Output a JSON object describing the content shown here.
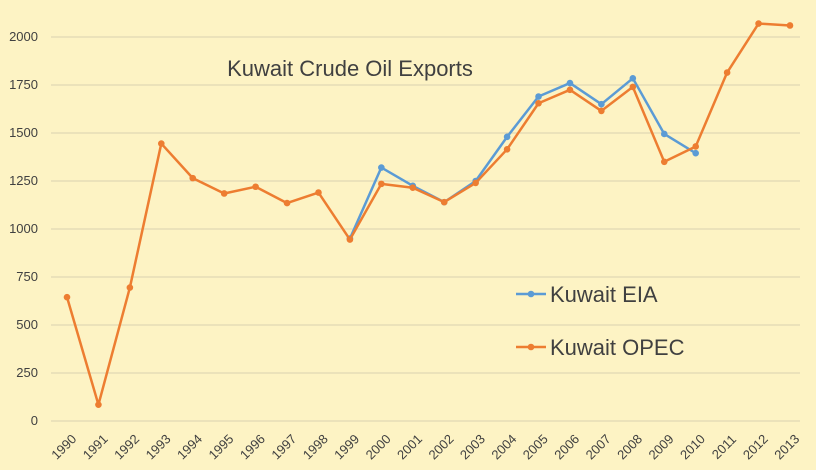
{
  "chart_data": {
    "type": "line",
    "title": "Kuwait Crude Oil Exports",
    "xlabel": "",
    "ylabel": "",
    "ylim": [
      0,
      2000
    ],
    "yticks": [
      0,
      250,
      500,
      750,
      1000,
      1250,
      1500,
      1750,
      2000
    ],
    "grid": true,
    "legend_position": "center-right",
    "categories": [
      "1990",
      "1991",
      "1992",
      "1993",
      "1994",
      "1995",
      "1996",
      "1997",
      "1998",
      "1999",
      "2000",
      "2001",
      "2002",
      "2003",
      "2004",
      "2005",
      "2006",
      "2007",
      "2008",
      "2009",
      "2010",
      "2011",
      "2012",
      "2013"
    ],
    "series": [
      {
        "name": "Kuwait EIA",
        "color": "#5b9bd5",
        "values": [
          null,
          null,
          null,
          null,
          null,
          null,
          null,
          null,
          null,
          950,
          1320,
          1225,
          1140,
          1250,
          1480,
          1690,
          1760,
          1650,
          1785,
          1495,
          1395,
          null,
          null,
          null
        ]
      },
      {
        "name": "Kuwait OPEC",
        "color": "#ed7d31",
        "values": [
          645,
          85,
          695,
          1445,
          1265,
          1185,
          1220,
          1135,
          1190,
          945,
          1235,
          1215,
          1140,
          1240,
          1415,
          1655,
          1725,
          1615,
          1740,
          1350,
          1430,
          1815,
          2070,
          2060
        ]
      }
    ]
  },
  "colors": {
    "background": "#fdf3c4",
    "grid": "#d9d2b0",
    "text": "#404040"
  }
}
